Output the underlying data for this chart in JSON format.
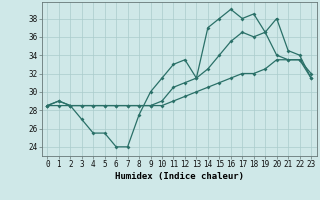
{
  "xlabel": "Humidex (Indice chaleur)",
  "bg_color": "#cfe8e8",
  "line_color": "#2a7068",
  "grid_color": "#aacccc",
  "xlim": [
    -0.5,
    23.5
  ],
  "ylim": [
    23.0,
    39.8
  ],
  "xticks": [
    0,
    1,
    2,
    3,
    4,
    5,
    6,
    7,
    8,
    9,
    10,
    11,
    12,
    13,
    14,
    15,
    16,
    17,
    18,
    19,
    20,
    21,
    22,
    23
  ],
  "yticks": [
    24,
    26,
    28,
    30,
    32,
    34,
    36,
    38
  ],
  "line1_x": [
    0,
    1,
    2,
    3,
    4,
    5,
    6,
    7,
    8,
    9,
    10,
    11,
    12,
    13,
    14,
    15,
    16,
    17,
    18,
    19,
    20,
    21,
    22,
    23
  ],
  "line1_y": [
    28.5,
    29.0,
    28.5,
    28.5,
    28.5,
    28.5,
    28.5,
    28.5,
    28.5,
    28.5,
    29.0,
    30.5,
    31.0,
    31.5,
    32.5,
    34.0,
    35.5,
    36.5,
    36.0,
    36.5,
    38.0,
    34.5,
    34.0,
    31.5
  ],
  "line2_x": [
    0,
    1,
    2,
    3,
    4,
    5,
    6,
    7,
    8,
    9,
    10,
    11,
    12,
    13,
    14,
    15,
    16,
    17,
    18,
    19,
    20,
    21,
    22,
    23
  ],
  "line2_y": [
    28.5,
    29.0,
    28.5,
    27.0,
    25.5,
    25.5,
    24.0,
    24.0,
    27.5,
    30.0,
    31.5,
    33.0,
    33.5,
    31.5,
    37.0,
    38.0,
    39.0,
    38.0,
    38.5,
    36.5,
    34.0,
    33.5,
    33.5,
    32.0
  ],
  "line3_x": [
    0,
    1,
    2,
    3,
    4,
    5,
    6,
    7,
    8,
    9,
    10,
    11,
    12,
    13,
    14,
    15,
    16,
    17,
    18,
    19,
    20,
    21,
    22,
    23
  ],
  "line3_y": [
    28.5,
    28.5,
    28.5,
    28.5,
    28.5,
    28.5,
    28.5,
    28.5,
    28.5,
    28.5,
    28.5,
    29.0,
    29.5,
    30.0,
    30.5,
    31.0,
    31.5,
    32.0,
    32.0,
    32.5,
    33.5,
    33.5,
    33.5,
    31.5
  ],
  "tick_fontsize": 5.5,
  "xlabel_fontsize": 6.5
}
